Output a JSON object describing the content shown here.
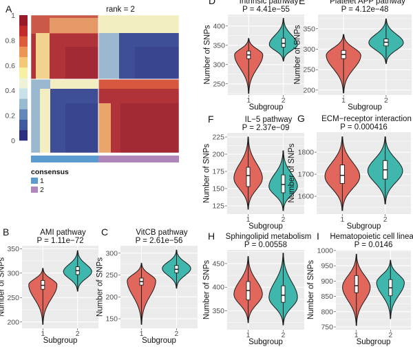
{
  "colors": {
    "group1": "#e1675d",
    "group2": "#3fb7ad",
    "panel_bg": "#ebebeb",
    "grid": "#ffffff",
    "consensus_1": "#5b9bd0",
    "consensus_2": "#ae86b9"
  },
  "heatmap": {
    "letter": "A",
    "title": "rank =  2",
    "colorbar_ticks": [
      "0",
      "0.2",
      "0.4",
      "0.6",
      "0.8",
      "1"
    ],
    "colorbar_range": [
      0,
      1
    ],
    "colorbar_colors": [
      "#2d2f7e",
      "#3f5a9e",
      "#6688b8",
      "#97bccf",
      "#c9e2ea",
      "#eef2d6",
      "#f7f0a3",
      "#f5c878",
      "#ec9556",
      "#de5b3c",
      "#c32c2a",
      "#9a1a2a"
    ],
    "legend_title": "consensus",
    "legend_items": [
      "1",
      "2"
    ]
  },
  "chart_data": [
    {
      "type": "violin",
      "letter": "B",
      "title": "AMI pathway",
      "pvalue": "P = 1.11e−72",
      "xlabel": "Subgroup",
      "ylabel": "Number of SNPs",
      "categories": [
        "1",
        "2"
      ],
      "yticks": [
        "200",
        "250",
        "300",
        "350"
      ],
      "ylim": [
        187,
        356
      ],
      "groups": [
        {
          "min": 195,
          "q1": 267,
          "median": 275,
          "q3": 285,
          "max": 310,
          "mode": 276
        },
        {
          "min": 263,
          "q1": 297,
          "median": 305,
          "q3": 313,
          "max": 346,
          "mode": 303
        }
      ]
    },
    {
      "type": "violin",
      "letter": "C",
      "title": "VitCB pathway",
      "pvalue": "P = 2.61e−56",
      "xlabel": "Subgroup",
      "ylabel": "Number of SNPs",
      "categories": [
        "1",
        "2"
      ],
      "yticks": [
        "150",
        "200",
        "250",
        "300"
      ],
      "ylim": [
        128,
        317
      ],
      "groups": [
        {
          "min": 137,
          "q1": 227,
          "median": 235,
          "q3": 243,
          "max": 277,
          "mode": 237
        },
        {
          "min": 220,
          "q1": 255,
          "median": 263,
          "q3": 272,
          "max": 307,
          "mode": 265
        }
      ]
    },
    {
      "type": "violin",
      "letter": "D",
      "title": "Intrinsic pathway",
      "pvalue": "P = 4.41e−55",
      "xlabel": "Subgroup",
      "ylabel": "Number of SNPs",
      "categories": [
        "1",
        "2"
      ],
      "yticks": [
        "250",
        "300",
        "350",
        "400"
      ],
      "ylim": [
        221,
        430
      ],
      "groups": [
        {
          "min": 225,
          "q1": 315,
          "median": 325,
          "q3": 335,
          "max": 368,
          "mode": 325
        },
        {
          "min": 309,
          "q1": 345,
          "median": 355,
          "q3": 368,
          "max": 420,
          "mode": 352
        }
      ]
    },
    {
      "type": "violin",
      "letter": "E",
      "title": "Platelet APP pathway",
      "pvalue": "P = 4.12e−48",
      "xlabel": "Subgroup",
      "ylabel": "Number of SNPs",
      "categories": [
        "1",
        "2"
      ],
      "yticks": [
        "200",
        "250",
        "300",
        "350"
      ],
      "ylim": [
        188,
        385
      ],
      "groups": [
        {
          "min": 193,
          "q1": 277,
          "median": 287,
          "q3": 297,
          "max": 336,
          "mode": 285
        },
        {
          "min": 265,
          "q1": 308,
          "median": 317,
          "q3": 325,
          "max": 374,
          "mode": 316
        }
      ]
    },
    {
      "type": "violin",
      "letter": "F",
      "title": "IL−5 pathway",
      "pvalue": "P = 2.37e−09",
      "xlabel": "Subgroup",
      "ylabel": "Number of SNPs",
      "categories": [
        "1",
        "2"
      ],
      "yticks": [
        "125",
        "150",
        "175",
        "200",
        "225"
      ],
      "ylim": [
        113,
        231
      ],
      "groups": [
        {
          "min": 120,
          "q1": 153,
          "median": 169,
          "q3": 181,
          "max": 225,
          "mode": 165
        },
        {
          "min": 118,
          "q1": 144,
          "median": 156,
          "q3": 170,
          "max": 205,
          "mode": 153
        }
      ]
    },
    {
      "type": "violin",
      "letter": "G",
      "title": "ECM−receptor interaction",
      "pvalue": "P = 0.000416",
      "xlabel": "Subgroup",
      "ylabel": "Number of SNPs",
      "categories": [
        "1",
        "2"
      ],
      "yticks": [
        "1600",
        "1700",
        "1800"
      ],
      "ylim": [
        1519,
        1891
      ],
      "groups": [
        {
          "min": 1535,
          "q1": 1658,
          "median": 1695,
          "q3": 1742,
          "max": 1870,
          "mode": 1690
        },
        {
          "min": 1565,
          "q1": 1678,
          "median": 1720,
          "q3": 1762,
          "max": 1870,
          "mode": 1715
        }
      ]
    },
    {
      "type": "violin",
      "letter": "H",
      "title": "Sphingolipid metabolism",
      "pvalue": "P = 0.00558",
      "xlabel": "Subgroup",
      "ylabel": "Number of SNPs",
      "categories": [
        "1",
        "2"
      ],
      "yticks": [
        "350",
        "400",
        "450"
      ],
      "ylim": [
        310,
        479
      ],
      "groups": [
        {
          "min": 325,
          "q1": 373,
          "median": 393,
          "q3": 412,
          "max": 465,
          "mode": 385
        },
        {
          "min": 320,
          "q1": 368,
          "median": 383,
          "q3": 403,
          "max": 472,
          "mode": 378
        }
      ]
    },
    {
      "type": "violin",
      "letter": "I",
      "title": "Hematopoietic cell lineage",
      "pvalue": "P = 0.0146",
      "xlabel": "Subgroup",
      "ylabel": "Number of SNPs",
      "categories": [
        "1",
        "2"
      ],
      "yticks": [
        "750",
        "800",
        "850",
        "900",
        "950",
        "1000"
      ],
      "ylim": [
        741,
        1002
      ],
      "groups": [
        {
          "min": 755,
          "q1": 862,
          "median": 885,
          "q3": 918,
          "max": 988,
          "mode": 880
        },
        {
          "min": 777,
          "q1": 852,
          "median": 878,
          "q3": 905,
          "max": 968,
          "mode": 895
        }
      ]
    }
  ]
}
